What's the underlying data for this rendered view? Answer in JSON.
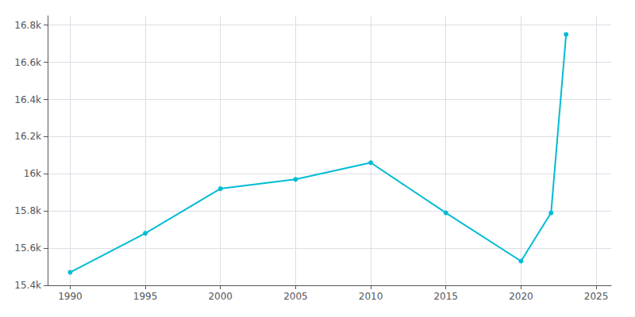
{
  "chart_data": {
    "type": "line",
    "x": [
      1990,
      1995,
      2000,
      2005,
      2010,
      2015,
      2020,
      2022,
      2023
    ],
    "values": [
      15470,
      15680,
      15920,
      15970,
      16060,
      15790,
      15530,
      15790,
      16750
    ],
    "color": "#00bcd4",
    "marker": "circle",
    "xlim": [
      1988.5,
      2026
    ],
    "xticks": [
      1990,
      1995,
      2000,
      2005,
      2010,
      2015,
      2020,
      2025
    ],
    "ylim": [
      15400,
      16850
    ],
    "yticks": [
      {
        "value": 15400,
        "label": "15.4k"
      },
      {
        "value": 15600,
        "label": "15.6k"
      },
      {
        "value": 15800,
        "label": "15.8k"
      },
      {
        "value": 16000,
        "label": "16k"
      },
      {
        "value": 16200,
        "label": "16.2k"
      },
      {
        "value": 16400,
        "label": "16.4k"
      },
      {
        "value": 16600,
        "label": "16.6k"
      },
      {
        "value": 16800,
        "label": "16.8k"
      }
    ],
    "grid": true
  }
}
